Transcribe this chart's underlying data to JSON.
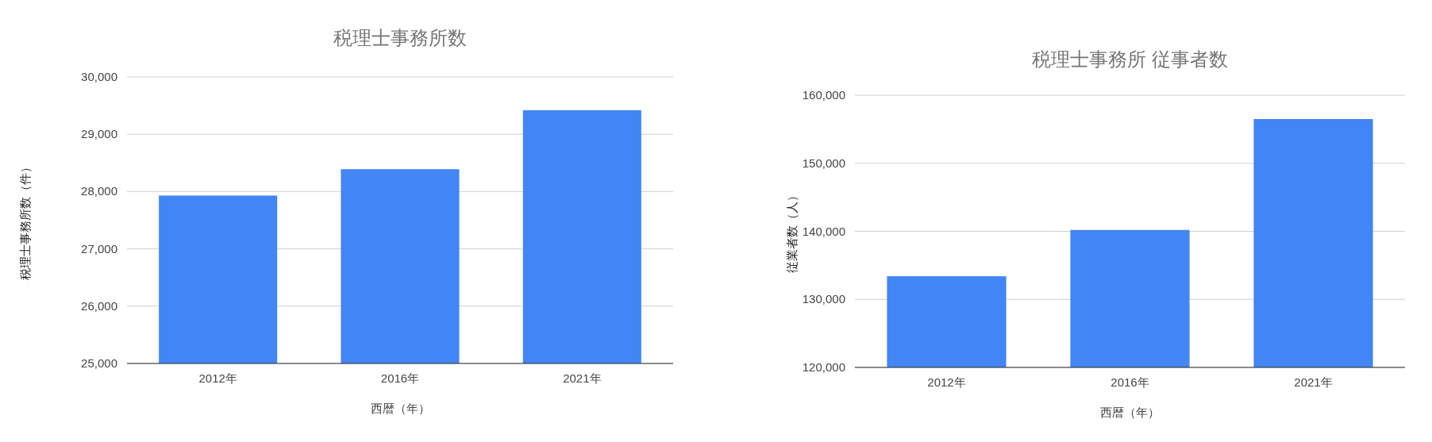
{
  "chart_data": [
    {
      "type": "bar",
      "title": "税理士事務所数",
      "xlabel": "西暦（年）",
      "ylabel": "税理士事務所数（件）",
      "categories": [
        "2012年",
        "2016年",
        "2021年"
      ],
      "values": [
        27930,
        28390,
        29420
      ],
      "color": "#4285f4",
      "ylim": [
        25000,
        30000
      ],
      "yticks": [
        {
          "value": 25000,
          "label": "25,000"
        },
        {
          "value": 26000,
          "label": "26,000"
        },
        {
          "value": 27000,
          "label": "27,000"
        },
        {
          "value": 28000,
          "label": "28,000"
        },
        {
          "value": 29000,
          "label": "29,000"
        },
        {
          "value": 30000,
          "label": "30,000"
        }
      ],
      "grid": "y"
    },
    {
      "type": "bar",
      "title": "税理士事務所 従事者数",
      "xlabel": "西暦（年）",
      "ylabel": "従業者数（人）",
      "categories": [
        "2012年",
        "2016年",
        "2021年"
      ],
      "values": [
        133400,
        140200,
        156500
      ],
      "color": "#4285f4",
      "ylim": [
        120000,
        160000
      ],
      "yticks": [
        {
          "value": 120000,
          "label": "120,000"
        },
        {
          "value": 130000,
          "label": "130,000"
        },
        {
          "value": 140000,
          "label": "140,000"
        },
        {
          "value": 150000,
          "label": "150,000"
        },
        {
          "value": 160000,
          "label": "160,000"
        }
      ],
      "grid": "y"
    }
  ]
}
